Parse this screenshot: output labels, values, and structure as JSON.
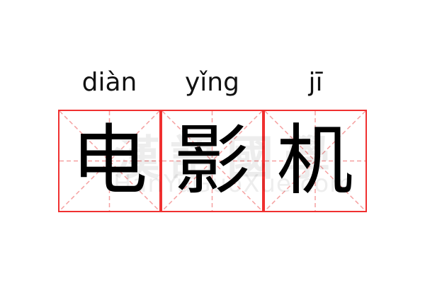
{
  "word": [
    {
      "pinyin": "diàn",
      "char": "电"
    },
    {
      "pinyin": "yǐng",
      "char": "影"
    },
    {
      "pinyin": "jī",
      "char": "机"
    }
  ],
  "watermark": {
    "cn": "漢語國學",
    "en": "HanYuGuoXue.com"
  },
  "colors": {
    "border": "#f03030",
    "guide": "#f5a0a0",
    "text": "#000000"
  }
}
